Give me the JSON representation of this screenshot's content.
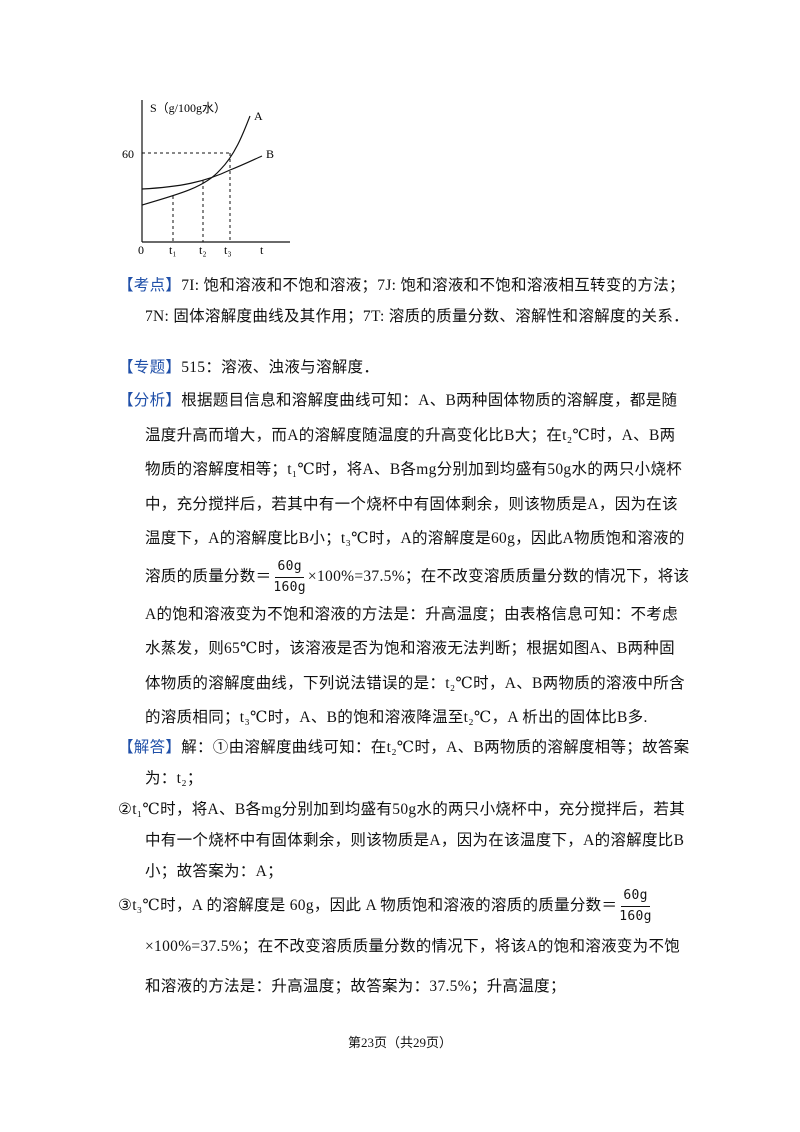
{
  "figure": {
    "y_axis_label": "S（g/100g水）",
    "y_tick": "60",
    "origin": "0",
    "x_ticks": [
      "t₁",
      "t₂",
      "t₃"
    ],
    "x_axis_label": "t",
    "curve_labels": [
      "A",
      "B"
    ]
  },
  "sections": [
    {
      "label": "【考点】",
      "text": "7I: 饱和溶液和不饱和溶液；7J: 饱和溶液和不饱和溶液相互转变的方法；7N: 固体溶解度曲线及其作用；7T: 溶质的质量分数、溶解性和溶解度的关系．"
    },
    {
      "label": "【专题】",
      "text": "515：溶液、浊液与溶解度．"
    },
    {
      "label": "【分析】",
      "text_before": "根据题目信息和溶解度曲线可知：A、B两种固体物质的溶解度，都是随温度升高而增大，而A的溶解度随温度的升高变化比B大；在t₂℃时，A、B两物质的溶解度相等；t₁℃时，将A、B各mg分别加到均盛有50g水的两只小烧杯中，充分搅拌后，若其中有一个烧杯中有固体剩余，则该物质是A，因为在该温度下，A的溶解度比B小；t₃℃时，A的溶解度是60g，因此A物质饱和溶液的溶质的质量分数＝",
      "fraction": {
        "numerator": "60g",
        "denominator": "160g"
      },
      "text_after": "×100%=37.5%；在不改变溶质质量分数的情况下，将该A的饱和溶液变为不饱和溶液的方法是：升高温度；由表格信息可知：不考虑水蒸发，则65℃时，该溶液是否为饱和溶液无法判断；根据如图A、B两种固体物质的溶解度曲线，下列说法错误的是：t₂℃时，A、B两物质的溶液中所含的溶质相同；t₃℃时，A、B的饱和溶液降温至t₂℃，A 析出的固体比B多."
    },
    {
      "label": "【解答】",
      "text": "解：①由溶解度曲线可知：在t₂℃时，A、B两物质的溶解度相等；故答案为：t₂；"
    }
  ],
  "items": [
    {
      "text": "②t₁℃时，将A、B各mg分别加到均盛有50g水的两只小烧杯中，充分搅拌后，若其中有一个烧杯中有固体剩余，则该物质是A，因为在该温度下，A的溶解度比B小；故答案为：A；"
    },
    {
      "text_before": "③t₃℃时，A 的溶解度是 60g，因此 A 物质饱和溶液的溶质的质量分数＝",
      "fraction": {
        "numerator": "60g",
        "denominator": "160g"
      },
      "text_after": "×100%=37.5%；在不改变溶质质量分数的情况下，将该A的饱和溶液变为不饱和溶液的方法是：升高温度；故答案为：37.5%；升高温度；"
    }
  ],
  "footer": {
    "page": "第23页（共29页）"
  }
}
